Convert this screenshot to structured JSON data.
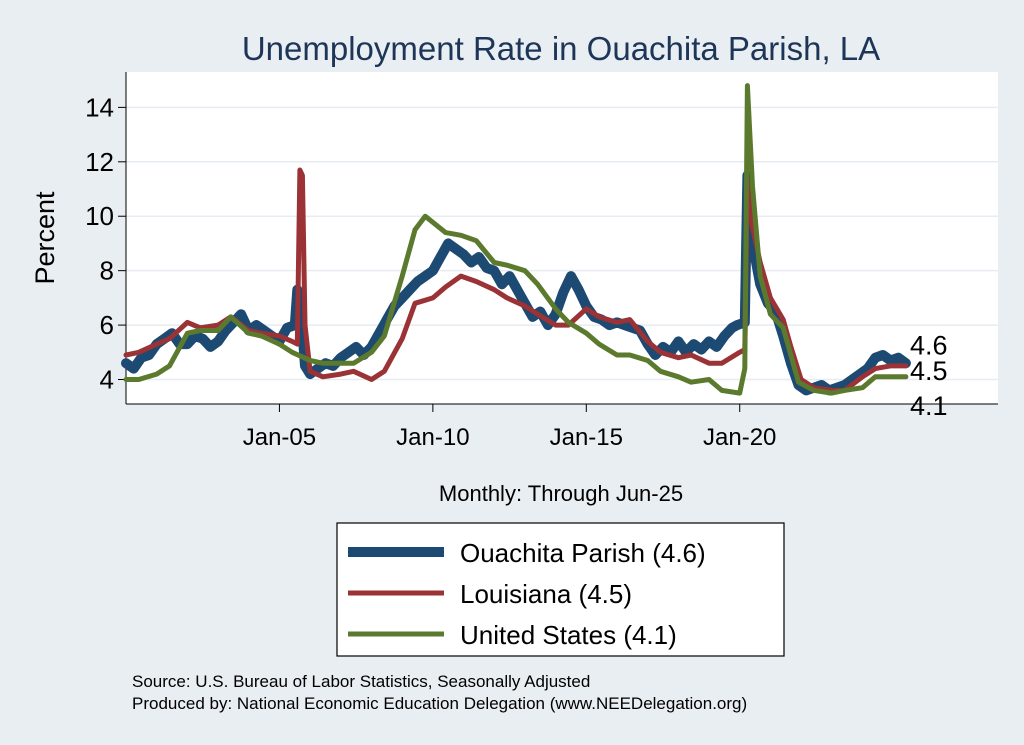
{
  "colors": {
    "background": "#e9eef3",
    "plot_background": "#ffffff",
    "gridline": "#e6ecf1",
    "title": "#1d3557",
    "ouachita": "#1c4a72",
    "louisiana": "#9a3236",
    "united_states": "#5b7a2e",
    "legend_box": "#ffffff"
  },
  "chart_data": {
    "type": "line",
    "title": "Unemployment Rate in Ouachita Parish, LA",
    "ylabel": "Percent",
    "xlabel": "Monthly: Through Jun-25",
    "ylim": [
      3.1,
      15.3
    ],
    "xlim": [
      "2000-01",
      "2028-06"
    ],
    "yticks": [
      4,
      6,
      8,
      10,
      12,
      14
    ],
    "xticks": [
      {
        "date": "2005-01",
        "label": "Jan-05"
      },
      {
        "date": "2010-01",
        "label": "Jan-10"
      },
      {
        "date": "2015-01",
        "label": "Jan-15"
      },
      {
        "date": "2020-01",
        "label": "Jan-20"
      }
    ],
    "grid": true,
    "legend_position": "bottom",
    "end_labels": [
      "4.6",
      "4.5",
      "4.1"
    ],
    "series": [
      {
        "name": "Ouachita Parish  (4.6)",
        "color_key": "ouachita",
        "points": [
          [
            "2000-01",
            4.6
          ],
          [
            "2000-04",
            4.4
          ],
          [
            "2000-07",
            4.8
          ],
          [
            "2000-10",
            4.9
          ],
          [
            "2001-01",
            5.3
          ],
          [
            "2001-04",
            5.5
          ],
          [
            "2001-07",
            5.7
          ],
          [
            "2001-10",
            5.3
          ],
          [
            "2002-01",
            5.3
          ],
          [
            "2002-04",
            5.6
          ],
          [
            "2002-07",
            5.5
          ],
          [
            "2002-10",
            5.2
          ],
          [
            "2003-01",
            5.4
          ],
          [
            "2003-04",
            5.8
          ],
          [
            "2003-07",
            6.1
          ],
          [
            "2003-10",
            6.4
          ],
          [
            "2004-01",
            5.8
          ],
          [
            "2004-04",
            6.0
          ],
          [
            "2004-07",
            5.8
          ],
          [
            "2004-10",
            5.6
          ],
          [
            "2005-01",
            5.4
          ],
          [
            "2005-04",
            5.9
          ],
          [
            "2005-07",
            6.0
          ],
          [
            "2005-08",
            7.3
          ],
          [
            "2005-10",
            5.8
          ],
          [
            "2005-11",
            4.5
          ],
          [
            "2006-01",
            4.2
          ],
          [
            "2006-04",
            4.4
          ],
          [
            "2006-07",
            4.6
          ],
          [
            "2006-10",
            4.5
          ],
          [
            "2007-01",
            4.8
          ],
          [
            "2007-04",
            5.0
          ],
          [
            "2007-07",
            5.2
          ],
          [
            "2007-10",
            4.9
          ],
          [
            "2008-01",
            5.2
          ],
          [
            "2008-04",
            5.7
          ],
          [
            "2008-07",
            6.2
          ],
          [
            "2008-10",
            6.7
          ],
          [
            "2009-01",
            7.0
          ],
          [
            "2009-04",
            7.3
          ],
          [
            "2009-07",
            7.6
          ],
          [
            "2009-10",
            7.8
          ],
          [
            "2010-01",
            8.0
          ],
          [
            "2010-04",
            8.5
          ],
          [
            "2010-07",
            9.0
          ],
          [
            "2010-10",
            8.8
          ],
          [
            "2011-01",
            8.6
          ],
          [
            "2011-04",
            8.3
          ],
          [
            "2011-07",
            8.5
          ],
          [
            "2011-10",
            8.1
          ],
          [
            "2012-01",
            8.0
          ],
          [
            "2012-04",
            7.5
          ],
          [
            "2012-07",
            7.8
          ],
          [
            "2012-10",
            7.3
          ],
          [
            "2013-01",
            6.8
          ],
          [
            "2013-04",
            6.3
          ],
          [
            "2013-07",
            6.5
          ],
          [
            "2013-10",
            6.0
          ],
          [
            "2014-01",
            6.4
          ],
          [
            "2014-04",
            7.2
          ],
          [
            "2014-07",
            7.8
          ],
          [
            "2014-10",
            7.3
          ],
          [
            "2015-01",
            6.7
          ],
          [
            "2015-04",
            6.3
          ],
          [
            "2015-07",
            6.2
          ],
          [
            "2015-10",
            6.0
          ],
          [
            "2016-01",
            6.1
          ],
          [
            "2016-04",
            6.0
          ],
          [
            "2016-07",
            5.9
          ],
          [
            "2016-10",
            5.8
          ],
          [
            "2017-01",
            5.3
          ],
          [
            "2017-04",
            4.9
          ],
          [
            "2017-07",
            5.2
          ],
          [
            "2017-10",
            5.0
          ],
          [
            "2018-01",
            5.4
          ],
          [
            "2018-04",
            5.0
          ],
          [
            "2018-07",
            5.3
          ],
          [
            "2018-10",
            5.1
          ],
          [
            "2019-01",
            5.4
          ],
          [
            "2019-04",
            5.2
          ],
          [
            "2019-07",
            5.6
          ],
          [
            "2019-10",
            5.9
          ],
          [
            "2019-12",
            6.0
          ],
          [
            "2020-03",
            6.1
          ],
          [
            "2020-04",
            11.5
          ],
          [
            "2020-06",
            9.0
          ],
          [
            "2020-09",
            7.5
          ],
          [
            "2020-12",
            6.8
          ],
          [
            "2021-03",
            6.5
          ],
          [
            "2021-06",
            5.6
          ],
          [
            "2021-09",
            4.6
          ],
          [
            "2021-12",
            3.8
          ],
          [
            "2022-03",
            3.6
          ],
          [
            "2022-06",
            3.7
          ],
          [
            "2022-09",
            3.8
          ],
          [
            "2022-12",
            3.6
          ],
          [
            "2023-03",
            3.7
          ],
          [
            "2023-06",
            3.8
          ],
          [
            "2023-09",
            4.0
          ],
          [
            "2023-12",
            4.2
          ],
          [
            "2024-03",
            4.4
          ],
          [
            "2024-06",
            4.8
          ],
          [
            "2024-09",
            4.9
          ],
          [
            "2024-12",
            4.7
          ],
          [
            "2025-03",
            4.8
          ],
          [
            "2025-06",
            4.6
          ]
        ]
      },
      {
        "name": "Louisiana (4.5)",
        "color_key": "louisiana",
        "points": [
          [
            "2000-01",
            4.9
          ],
          [
            "2000-06",
            5.0
          ],
          [
            "2001-01",
            5.3
          ],
          [
            "2001-06",
            5.5
          ],
          [
            "2002-01",
            6.1
          ],
          [
            "2002-06",
            5.9
          ],
          [
            "2003-01",
            6.0
          ],
          [
            "2003-06",
            6.3
          ],
          [
            "2004-01",
            5.8
          ],
          [
            "2004-06",
            5.7
          ],
          [
            "2005-01",
            5.6
          ],
          [
            "2005-06",
            5.4
          ],
          [
            "2005-08",
            5.3
          ],
          [
            "2005-09",
            11.7
          ],
          [
            "2005-10",
            11.5
          ],
          [
            "2005-11",
            6.0
          ],
          [
            "2006-01",
            4.3
          ],
          [
            "2006-06",
            4.1
          ],
          [
            "2007-01",
            4.2
          ],
          [
            "2007-06",
            4.3
          ],
          [
            "2008-01",
            4.0
          ],
          [
            "2008-06",
            4.3
          ],
          [
            "2009-01",
            5.5
          ],
          [
            "2009-06",
            6.8
          ],
          [
            "2010-01",
            7.0
          ],
          [
            "2010-06",
            7.4
          ],
          [
            "2010-12",
            7.8
          ],
          [
            "2011-06",
            7.6
          ],
          [
            "2012-01",
            7.3
          ],
          [
            "2012-06",
            7.0
          ],
          [
            "2013-01",
            6.7
          ],
          [
            "2013-06",
            6.4
          ],
          [
            "2014-01",
            6.0
          ],
          [
            "2014-06",
            6.0
          ],
          [
            "2015-01",
            6.6
          ],
          [
            "2015-06",
            6.3
          ],
          [
            "2016-01",
            6.1
          ],
          [
            "2016-06",
            6.2
          ],
          [
            "2017-01",
            5.4
          ],
          [
            "2017-06",
            5.0
          ],
          [
            "2018-01",
            4.8
          ],
          [
            "2018-06",
            4.9
          ],
          [
            "2019-01",
            4.6
          ],
          [
            "2019-06",
            4.6
          ],
          [
            "2020-01",
            5.0
          ],
          [
            "2020-03",
            5.1
          ],
          [
            "2020-04",
            11.3
          ],
          [
            "2020-06",
            9.6
          ],
          [
            "2020-09",
            8.3
          ],
          [
            "2021-01",
            7.0
          ],
          [
            "2021-06",
            6.2
          ],
          [
            "2021-09",
            5.2
          ],
          [
            "2022-01",
            4.0
          ],
          [
            "2022-06",
            3.7
          ],
          [
            "2023-01",
            3.6
          ],
          [
            "2023-06",
            3.6
          ],
          [
            "2024-01",
            4.1
          ],
          [
            "2024-06",
            4.4
          ],
          [
            "2024-12",
            4.5
          ],
          [
            "2025-06",
            4.5
          ]
        ]
      },
      {
        "name": "United States (4.1)",
        "color_key": "united_states",
        "points": [
          [
            "2000-01",
            4.0
          ],
          [
            "2000-06",
            4.0
          ],
          [
            "2001-01",
            4.2
          ],
          [
            "2001-06",
            4.5
          ],
          [
            "2002-01",
            5.7
          ],
          [
            "2002-06",
            5.8
          ],
          [
            "2003-01",
            5.8
          ],
          [
            "2003-06",
            6.3
          ],
          [
            "2004-01",
            5.7
          ],
          [
            "2004-06",
            5.6
          ],
          [
            "2005-01",
            5.3
          ],
          [
            "2005-06",
            5.0
          ],
          [
            "2006-01",
            4.7
          ],
          [
            "2006-06",
            4.6
          ],
          [
            "2007-01",
            4.6
          ],
          [
            "2007-06",
            4.6
          ],
          [
            "2008-01",
            5.0
          ],
          [
            "2008-06",
            5.6
          ],
          [
            "2009-01",
            7.8
          ],
          [
            "2009-06",
            9.5
          ],
          [
            "2009-10",
            10.0
          ],
          [
            "2010-06",
            9.4
          ],
          [
            "2010-12",
            9.3
          ],
          [
            "2011-06",
            9.1
          ],
          [
            "2012-01",
            8.3
          ],
          [
            "2012-06",
            8.2
          ],
          [
            "2013-01",
            8.0
          ],
          [
            "2013-06",
            7.5
          ],
          [
            "2014-01",
            6.6
          ],
          [
            "2014-06",
            6.1
          ],
          [
            "2015-01",
            5.7
          ],
          [
            "2015-06",
            5.3
          ],
          [
            "2016-01",
            4.9
          ],
          [
            "2016-06",
            4.9
          ],
          [
            "2017-01",
            4.7
          ],
          [
            "2017-06",
            4.3
          ],
          [
            "2018-01",
            4.1
          ],
          [
            "2018-06",
            3.9
          ],
          [
            "2019-01",
            4.0
          ],
          [
            "2019-06",
            3.6
          ],
          [
            "2020-01",
            3.5
          ],
          [
            "2020-03",
            4.4
          ],
          [
            "2020-04",
            14.8
          ],
          [
            "2020-06",
            11.1
          ],
          [
            "2020-09",
            7.8
          ],
          [
            "2021-01",
            6.4
          ],
          [
            "2021-06",
            5.9
          ],
          [
            "2021-12",
            3.9
          ],
          [
            "2022-06",
            3.6
          ],
          [
            "2023-01",
            3.5
          ],
          [
            "2023-06",
            3.6
          ],
          [
            "2024-01",
            3.7
          ],
          [
            "2024-06",
            4.1
          ],
          [
            "2024-12",
            4.1
          ],
          [
            "2025-06",
            4.1
          ]
        ]
      }
    ]
  },
  "source_line": "Source: U.S. Bureau of Labor Statistics, Seasonally Adjusted",
  "producer_line": "Produced by: National Economic Education Delegation (www.NEEDelegation.org)"
}
